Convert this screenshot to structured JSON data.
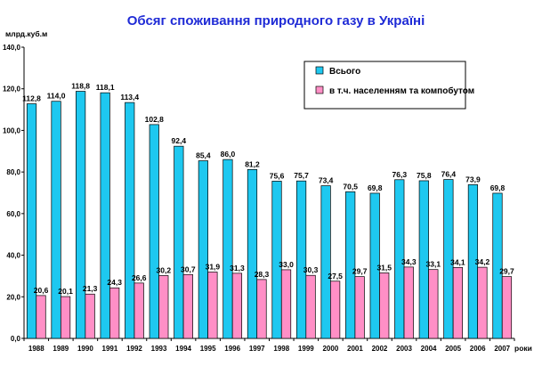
{
  "chart_data": {
    "type": "bar",
    "title": "Обсяг споживання природного газу в Україні",
    "ylabel": "млрд.куб.м",
    "xlabel": "роки",
    "ylim": [
      0,
      140
    ],
    "yticks": [
      "0,0",
      "20,0",
      "40,0",
      "60,0",
      "80,0",
      "100,0",
      "120,0",
      "140,0"
    ],
    "grid": false,
    "legend_position": "top-right",
    "categories": [
      "1988",
      "1989",
      "1990",
      "1991",
      "1992",
      "1993",
      "1994",
      "1995",
      "1996",
      "1997",
      "1998",
      "1999",
      "2000",
      "2001",
      "2002",
      "2003",
      "2004",
      "2005",
      "2006",
      "2007"
    ],
    "series": [
      {
        "name": "Всього",
        "color": "#1ec8f0",
        "values": [
          112.8,
          114.0,
          118.8,
          118.1,
          113.4,
          102.8,
          92.4,
          85.4,
          86.0,
          81.2,
          75.6,
          75.7,
          73.4,
          70.5,
          69.8,
          76.3,
          75.8,
          76.4,
          73.9,
          69.8
        ],
        "labels": [
          "112,8",
          "114,0",
          "118,8",
          "118,1",
          "113,4",
          "102,8",
          "92,4",
          "85,4",
          "86,0",
          "81,2",
          "75,6",
          "75,7",
          "73,4",
          "70,5",
          "69,8",
          "76,3",
          "75,8",
          "76,4",
          "73,9",
          "69,8"
        ]
      },
      {
        "name": "в т.ч. населенням та компобутом",
        "color": "#ff8fc6",
        "values": [
          20.6,
          20.1,
          21.3,
          24.3,
          26.6,
          30.2,
          30.7,
          31.9,
          31.3,
          28.3,
          33.0,
          30.3,
          27.5,
          29.7,
          31.5,
          34.3,
          33.1,
          34.1,
          34.2,
          29.7
        ],
        "labels": [
          "20,6",
          "20,1",
          "21,3",
          "24,3",
          "26,6",
          "30,2",
          "30,7",
          "31,9",
          "31,3",
          "28,3",
          "33,0",
          "30,3",
          "27,5",
          "29,7",
          "31,5",
          "34,3",
          "33,1",
          "34,1",
          "34,2",
          "29,7"
        ]
      }
    ]
  }
}
